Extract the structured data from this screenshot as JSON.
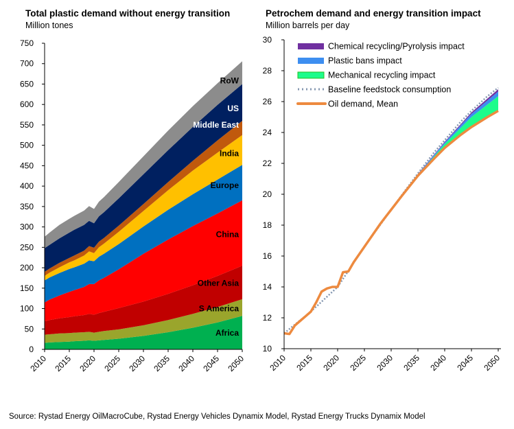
{
  "source": "Source: Rystad Energy OilMacroCube, Rystad Energy Vehicles Dynamix Model, Rystad Energy Trucks Dynamix Model",
  "chart_data": [
    {
      "type": "area",
      "stacked": true,
      "title": "Total plastic demand without energy transition",
      "subtitle": "Million tones",
      "xlabel": "",
      "ylabel": "Million tones",
      "xlim": [
        2010,
        2050
      ],
      "ylim": [
        0,
        750
      ],
      "x_ticks": [
        "2010",
        "2015",
        "2020",
        "2025",
        "2030",
        "2035",
        "2040",
        "2045",
        "2050"
      ],
      "y_ticks": [
        "0",
        "50",
        "100",
        "150",
        "200",
        "250",
        "300",
        "350",
        "400",
        "450",
        "500",
        "550",
        "600",
        "650",
        "700",
        "750"
      ],
      "grid": false,
      "x": [
        2010,
        2011,
        2013,
        2015,
        2016,
        2018,
        2019,
        2020,
        2021,
        2022,
        2025,
        2030,
        2035,
        2040,
        2045,
        2050
      ],
      "series": [
        {
          "name": "Africa",
          "label_color": "#000000",
          "color": "#00b050",
          "values": [
            16,
            17,
            18,
            19,
            20,
            21,
            22,
            21,
            22,
            23,
            26,
            33,
            42,
            53,
            66,
            82
          ]
        },
        {
          "name": "S America",
          "label_color": "#000000",
          "color": "#9aa52c",
          "values": [
            20,
            20,
            21,
            21,
            21,
            21,
            21,
            20,
            21,
            22,
            23,
            26,
            30,
            34,
            38,
            41
          ]
        },
        {
          "name": "Other Asia",
          "label_color": "#000000",
          "color": "#c00000",
          "values": [
            33,
            35,
            37,
            39,
            40,
            42,
            44,
            44,
            46,
            47,
            52,
            58,
            64,
            70,
            76,
            82
          ]
        },
        {
          "name": "China",
          "label_color": "#000000",
          "color": "#ff0000",
          "values": [
            46,
            50,
            56,
            62,
            64,
            69,
            73,
            75,
            80,
            83,
            95,
            117,
            133,
            145,
            153,
            160
          ]
        },
        {
          "name": "Europe",
          "label_color": "#000000",
          "color": "#0070c0",
          "values": [
            54,
            54,
            55,
            56,
            56,
            57,
            58,
            56,
            58,
            59,
            62,
            67,
            73,
            78,
            83,
            87
          ]
        },
        {
          "name": "India",
          "label_color": "#000000",
          "color": "#ffc000",
          "values": [
            11,
            12,
            14,
            16,
            17,
            20,
            22,
            20,
            23,
            25,
            30,
            38,
            48,
            58,
            66,
            73
          ]
        },
        {
          "name": "Middle East",
          "label_color": "#ffffff",
          "color": "#c0590d",
          "values": [
            10,
            10,
            11,
            11,
            12,
            12,
            13,
            13,
            14,
            14,
            15,
            17,
            20,
            24,
            30,
            35
          ]
        },
        {
          "name": "US",
          "label_color": "#ffffff",
          "color": "#002060",
          "values": [
            58,
            58,
            60,
            62,
            63,
            63,
            62,
            60,
            62,
            63,
            67,
            73,
            78,
            83,
            87,
            90
          ]
        },
        {
          "name": "RoW",
          "label_color": "#000000",
          "color": "#8c8c8c",
          "values": [
            28,
            30,
            33,
            34,
            34,
            35,
            36,
            35,
            36,
            37,
            40,
            44,
            48,
            51,
            53,
            56
          ]
        }
      ]
    },
    {
      "type": "area",
      "title": "Petrochem demand and energy transition impact",
      "subtitle": "Million barrels per day",
      "xlabel": "",
      "ylabel": "Million barrels per day",
      "xlim": [
        2010,
        2050
      ],
      "ylim": [
        10,
        30
      ],
      "x_ticks": [
        "2010",
        "2015",
        "2020",
        "2025",
        "2030",
        "2035",
        "2040",
        "2045",
        "2050"
      ],
      "y_ticks": [
        "10",
        "12",
        "14",
        "16",
        "18",
        "20",
        "22",
        "24",
        "26",
        "28",
        "30"
      ],
      "grid": false,
      "legend_position": "top-left",
      "legend": [
        {
          "name": "Chemical recycling/Pyrolysis impact",
          "kind": "area",
          "color": "#7030a0"
        },
        {
          "name": "Plastic bans impact",
          "kind": "area",
          "color": "#3d8ef0"
        },
        {
          "name": "Mechanical recycling impact",
          "kind": "area",
          "color": "#1dfc8b"
        },
        {
          "name": "Baseline feedstock consumption",
          "kind": "dotted-line",
          "color": "#8497b0"
        },
        {
          "name": "Oil demand, Mean",
          "kind": "line",
          "color": "#ed8a3f"
        }
      ],
      "oil_demand_mean": {
        "x": [
          2010,
          2011,
          2012,
          2013,
          2014,
          2015,
          2016,
          2017,
          2018,
          2019,
          2020,
          2021,
          2022,
          2023,
          2024,
          2025,
          2026,
          2027,
          2028,
          2029,
          2030,
          2032,
          2035,
          2038,
          2040,
          2043,
          2045,
          2048,
          2050
        ],
        "values": [
          11.0,
          10.95,
          11.5,
          11.8,
          12.1,
          12.4,
          13.0,
          13.7,
          13.9,
          14.0,
          14.0,
          14.95,
          15.0,
          15.6,
          16.1,
          16.6,
          17.1,
          17.6,
          18.1,
          18.55,
          19.0,
          19.9,
          21.2,
          22.3,
          23.0,
          23.85,
          24.35,
          25.0,
          25.4
        ]
      },
      "baseline_feedstock": {
        "x": [
          2010,
          2015,
          2020,
          2025,
          2030,
          2032,
          2035,
          2038,
          2040,
          2043,
          2045,
          2048,
          2050
        ],
        "values": [
          11.0,
          12.4,
          14.0,
          16.6,
          19.0,
          19.95,
          21.35,
          22.7,
          23.5,
          24.7,
          25.4,
          26.35,
          26.9
        ]
      },
      "impact_bands": {
        "x": [
          2030,
          2035,
          2040,
          2045,
          2050
        ],
        "mechanical_recycling_top": [
          19.0,
          21.25,
          23.25,
          25.0,
          26.35
        ],
        "plastic_bans_top": [
          19.0,
          21.3,
          23.35,
          25.2,
          26.65
        ],
        "chemical_recycling_top": [
          19.0,
          21.32,
          23.4,
          25.3,
          26.8
        ]
      }
    }
  ]
}
